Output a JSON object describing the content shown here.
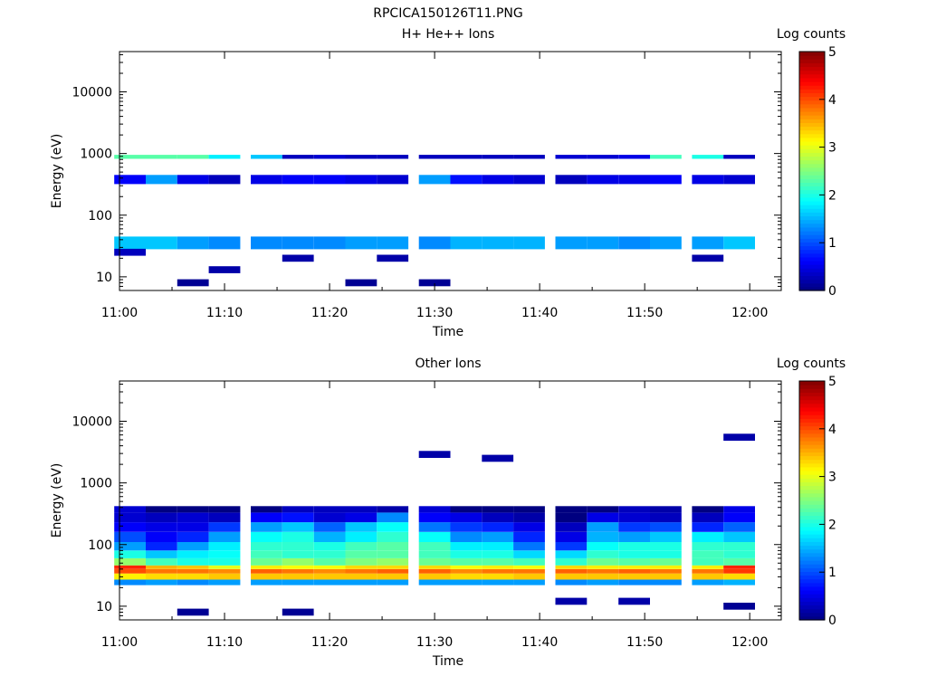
{
  "figure_title": "RPCICA150126T11.PNG",
  "colorbar_ticks": [
    "0",
    "1",
    "2",
    "3",
    "4",
    "5"
  ],
  "chart_data": [
    {
      "type": "heatmap",
      "title": "H+ He++ Ions",
      "xlabel": "Time",
      "ylabel": "Energy (eV)",
      "colorbar_label": "Log counts",
      "colorscale": "jet",
      "color_range": [
        0,
        5
      ],
      "y_scale": "log",
      "ylim": [
        6,
        45000
      ],
      "xlim": [
        "11:00",
        "12:03"
      ],
      "x_ticks": [
        "11:00",
        "11:10",
        "11:20",
        "11:30",
        "11:40",
        "11:50",
        "12:00"
      ],
      "y_ticks": [
        "10",
        "100",
        "1000",
        "10000"
      ],
      "time_bins": [
        "11:01",
        "11:04",
        "11:07",
        "11:10",
        "11:14",
        "11:17",
        "11:20",
        "11:23",
        "11:26",
        "11:30",
        "11:33",
        "11:36",
        "11:39",
        "11:43",
        "11:46",
        "11:49",
        "11:52",
        "11:56",
        "11:59"
      ],
      "bands": [
        {
          "e_low": 28,
          "e_high": 45,
          "values": [
            1.6,
            1.6,
            1.4,
            1.3,
            1.3,
            1.3,
            1.3,
            1.4,
            1.4,
            1.3,
            1.5,
            1.5,
            1.5,
            1.4,
            1.4,
            1.3,
            1.4,
            1.4,
            1.6
          ]
        },
        {
          "e_low": 320,
          "e_high": 450,
          "values": [
            0.6,
            1.4,
            0.5,
            0.3,
            0.5,
            0.6,
            0.6,
            0.5,
            0.4,
            1.4,
            0.7,
            0.5,
            0.4,
            0.3,
            0.5,
            0.5,
            0.6,
            0.5,
            0.4
          ]
        },
        {
          "e_low": 820,
          "e_high": 950,
          "values": [
            2.3,
            2.3,
            2.3,
            1.8,
            1.6,
            0.3,
            0.4,
            0.3,
            0.3,
            0.3,
            0.3,
            0.3,
            0.3,
            0.4,
            0.4,
            0.5,
            2.2,
            2.0,
            0.3
          ]
        }
      ],
      "sparse_hits": [
        {
          "time": "11:07",
          "energy": 8,
          "value": 0.1
        },
        {
          "time": "11:10",
          "energy": 13,
          "value": 0.2
        },
        {
          "time": "11:17",
          "energy": 20,
          "value": 0.2
        },
        {
          "time": "11:23",
          "energy": 8,
          "value": 0.1
        },
        {
          "time": "11:26",
          "energy": 20,
          "value": 0.2
        },
        {
          "time": "11:30",
          "energy": 8,
          "value": 0.1
        },
        {
          "time": "11:56",
          "energy": 20,
          "value": 0.2
        },
        {
          "time": "11:01",
          "energy": 25,
          "value": 0.3
        }
      ]
    },
    {
      "type": "heatmap",
      "title": "Other Ions",
      "xlabel": "Time",
      "ylabel": "Energy (eV)",
      "colorbar_label": "Log counts",
      "colorscale": "jet",
      "color_range": [
        0,
        5
      ],
      "y_scale": "log",
      "ylim": [
        6,
        45000
      ],
      "xlim": [
        "11:00",
        "12:03"
      ],
      "x_ticks": [
        "11:00",
        "11:10",
        "11:20",
        "11:30",
        "11:40",
        "11:50",
        "12:00"
      ],
      "y_ticks": [
        "10",
        "100",
        "1000",
        "10000"
      ],
      "time_bins": [
        "11:01",
        "11:04",
        "11:07",
        "11:10",
        "11:14",
        "11:17",
        "11:20",
        "11:23",
        "11:26",
        "11:30",
        "11:33",
        "11:36",
        "11:39",
        "11:43",
        "11:46",
        "11:49",
        "11:52",
        "11:56",
        "11:59"
      ],
      "bands": [
        {
          "e_low": 22,
          "e_high": 27,
          "values": [
            1.3,
            1.4,
            1.3,
            1.4,
            1.4,
            1.4,
            1.4,
            1.4,
            1.4,
            1.4,
            1.4,
            1.4,
            1.4,
            1.3,
            1.4,
            1.3,
            1.3,
            1.4,
            1.5
          ]
        },
        {
          "e_low": 27,
          "e_high": 34,
          "values": [
            3.2,
            3.3,
            3.3,
            3.4,
            3.4,
            3.4,
            3.4,
            3.4,
            3.4,
            3.4,
            3.3,
            3.3,
            3.4,
            3.4,
            3.4,
            3.4,
            3.4,
            3.4,
            3.3
          ]
        },
        {
          "e_low": 34,
          "e_high": 40,
          "values": [
            4.0,
            3.8,
            3.8,
            3.7,
            3.9,
            3.8,
            3.7,
            3.8,
            3.9,
            3.9,
            3.7,
            3.8,
            3.8,
            3.9,
            3.8,
            3.9,
            3.8,
            3.8,
            4.1
          ]
        },
        {
          "e_low": 40,
          "e_high": 46,
          "values": [
            4.2,
            3.5,
            3.4,
            3.0,
            3.2,
            3.1,
            3.1,
            3.3,
            3.3,
            3.3,
            3.1,
            3.2,
            3.1,
            3.3,
            3.2,
            3.2,
            3.2,
            3.2,
            4.2
          ]
        },
        {
          "e_low": 46,
          "e_high": 60,
          "values": [
            2.6,
            2.2,
            2.0,
            2.0,
            2.4,
            2.6,
            2.3,
            2.5,
            2.6,
            2.4,
            2.3,
            2.3,
            2.2,
            2.1,
            2.4,
            2.3,
            2.4,
            2.2,
            2.3
          ]
        },
        {
          "e_low": 60,
          "e_high": 80,
          "values": [
            2.0,
            1.6,
            1.8,
            1.9,
            2.2,
            2.1,
            2.1,
            2.3,
            2.3,
            2.2,
            2.0,
            2.0,
            1.7,
            1.7,
            2.1,
            2.0,
            2.0,
            2.2,
            2.1
          ]
        },
        {
          "e_low": 80,
          "e_high": 110,
          "values": [
            1.4,
            0.8,
            1.4,
            1.8,
            2.1,
            2.1,
            2.0,
            2.2,
            2.3,
            2.2,
            1.8,
            1.8,
            1.2,
            0.9,
            1.9,
            2.0,
            2.0,
            2.1,
            2.1
          ]
        },
        {
          "e_low": 110,
          "e_high": 160,
          "values": [
            1.0,
            0.6,
            0.8,
            1.4,
            1.9,
            2.0,
            1.5,
            1.8,
            2.1,
            1.9,
            1.3,
            1.4,
            0.8,
            0.5,
            1.5,
            1.4,
            1.6,
            1.8,
            1.6
          ]
        },
        {
          "e_low": 160,
          "e_high": 230,
          "values": [
            0.6,
            0.5,
            0.5,
            0.9,
            1.4,
            1.6,
            1.1,
            1.6,
            1.9,
            1.2,
            0.9,
            0.8,
            0.5,
            0.3,
            1.4,
            0.9,
            1.0,
            0.8,
            1.1
          ]
        },
        {
          "e_low": 230,
          "e_high": 330,
          "values": [
            0.4,
            0.3,
            0.4,
            0.3,
            0.6,
            0.7,
            0.4,
            0.5,
            1.3,
            0.6,
            0.5,
            0.3,
            0.2,
            0.0,
            0.5,
            0.4,
            0.3,
            0.3,
            0.6
          ]
        },
        {
          "e_low": 330,
          "e_high": 420,
          "values": [
            0.4,
            0.0,
            0.0,
            0.0,
            0.0,
            0.3,
            0.3,
            0.3,
            0.2,
            0.4,
            0.0,
            0.0,
            0.0,
            0.0,
            0.0,
            0.3,
            0.2,
            0.0,
            0.5
          ]
        }
      ],
      "sparse_hits": [
        {
          "time": "11:07",
          "energy": 8,
          "value": 0.1
        },
        {
          "time": "11:17",
          "energy": 8,
          "value": 0.1
        },
        {
          "time": "11:59",
          "energy": 10,
          "value": 0.1
        },
        {
          "time": "11:43",
          "energy": 12,
          "value": 0.2
        },
        {
          "time": "11:49",
          "energy": 12,
          "value": 0.2
        },
        {
          "time": "11:30",
          "energy": 2900,
          "value": 0.2
        },
        {
          "time": "11:36",
          "energy": 2500,
          "value": 0.2
        },
        {
          "time": "11:59",
          "energy": 5500,
          "value": 0.2
        }
      ]
    }
  ]
}
